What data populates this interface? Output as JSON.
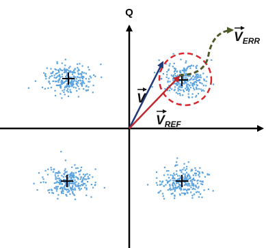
{
  "axes": {
    "q_label": "Q"
  },
  "vectors": {
    "measured": {
      "symbol": "V"
    },
    "reference": {
      "symbol": "V",
      "subscript": "REF"
    },
    "error": {
      "symbol": "V",
      "subscript": "ERR"
    }
  }
}
